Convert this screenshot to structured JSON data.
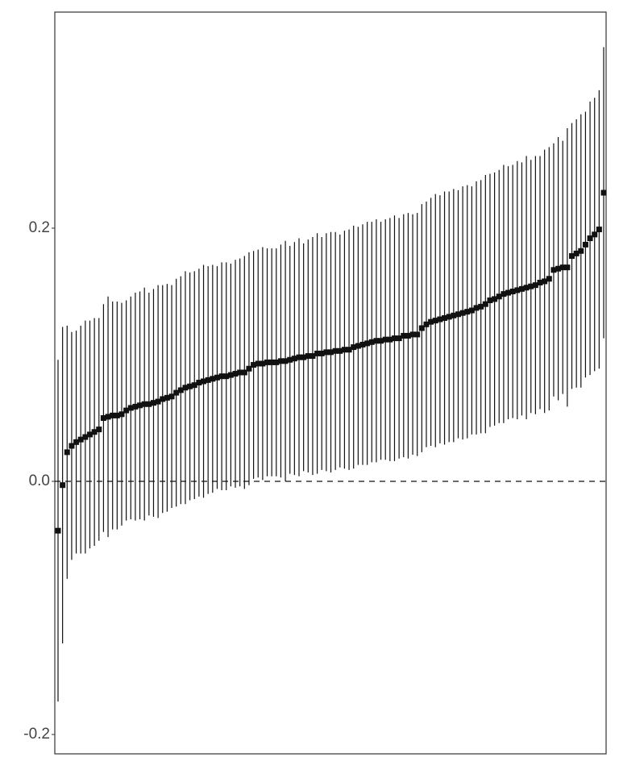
{
  "chart_data": {
    "type": "errorbar",
    "values": [
      -0.039,
      -0.003,
      0.023,
      0.028,
      0.031,
      0.033,
      0.035,
      0.037,
      0.039,
      0.041,
      0.05,
      0.051,
      0.052,
      0.052,
      0.053,
      0.056,
      0.058,
      0.059,
      0.06,
      0.061,
      0.061,
      0.062,
      0.063,
      0.065,
      0.066,
      0.067,
      0.07,
      0.072,
      0.074,
      0.075,
      0.076,
      0.078,
      0.079,
      0.08,
      0.081,
      0.082,
      0.083,
      0.083,
      0.084,
      0.085,
      0.086,
      0.086,
      0.089,
      0.092,
      0.093,
      0.093,
      0.094,
      0.094,
      0.094,
      0.095,
      0.095,
      0.096,
      0.097,
      0.098,
      0.098,
      0.099,
      0.099,
      0.101,
      0.101,
      0.102,
      0.102,
      0.103,
      0.103,
      0.104,
      0.104,
      0.106,
      0.107,
      0.108,
      0.109,
      0.11,
      0.111,
      0.111,
      0.112,
      0.112,
      0.113,
      0.113,
      0.115,
      0.115,
      0.116,
      0.116,
      0.121,
      0.124,
      0.126,
      0.127,
      0.128,
      0.129,
      0.13,
      0.131,
      0.132,
      0.133,
      0.134,
      0.135,
      0.137,
      0.138,
      0.14,
      0.143,
      0.144,
      0.146,
      0.148,
      0.149,
      0.15,
      0.151,
      0.152,
      0.153,
      0.154,
      0.155,
      0.157,
      0.158,
      0.16,
      0.167,
      0.168,
      0.169,
      0.169,
      0.178,
      0.18,
      0.182,
      0.187,
      0.192,
      0.195,
      0.199,
      0.228
    ],
    "errors": [
      0.135,
      0.125,
      0.1,
      0.09,
      0.088,
      0.09,
      0.092,
      0.09,
      0.09,
      0.088,
      0.09,
      0.095,
      0.09,
      0.09,
      0.088,
      0.087,
      0.088,
      0.09,
      0.09,
      0.092,
      0.088,
      0.09,
      0.092,
      0.09,
      0.09,
      0.088,
      0.09,
      0.09,
      0.092,
      0.09,
      0.09,
      0.09,
      0.092,
      0.09,
      0.09,
      0.088,
      0.09,
      0.09,
      0.088,
      0.09,
      0.09,
      0.092,
      0.092,
      0.09,
      0.09,
      0.092,
      0.09,
      0.09,
      0.09,
      0.092,
      0.095,
      0.09,
      0.092,
      0.094,
      0.09,
      0.092,
      0.094,
      0.095,
      0.092,
      0.094,
      0.095,
      0.094,
      0.092,
      0.094,
      0.095,
      0.096,
      0.094,
      0.095,
      0.096,
      0.095,
      0.096,
      0.094,
      0.095,
      0.096,
      0.097,
      0.095,
      0.096,
      0.097,
      0.095,
      0.096,
      0.098,
      0.097,
      0.098,
      0.1,
      0.098,
      0.1,
      0.099,
      0.1,
      0.098,
      0.1,
      0.1,
      0.098,
      0.1,
      0.1,
      0.102,
      0.1,
      0.1,
      0.1,
      0.102,
      0.1,
      0.1,
      0.102,
      0.1,
      0.104,
      0.1,
      0.102,
      0.1,
      0.104,
      0.104,
      0.1,
      0.104,
      0.1,
      0.11,
      0.105,
      0.106,
      0.108,
      0.105,
      0.108,
      0.108,
      0.11,
      0.115
    ],
    "color": "#111111",
    "ylim": [
      -0.2153,
      0.3707
    ],
    "yticks": [
      -0.2,
      {
        "value": 0,
        "label": "0.0"
      },
      0.2
    ],
    "reference_line": 0
  }
}
